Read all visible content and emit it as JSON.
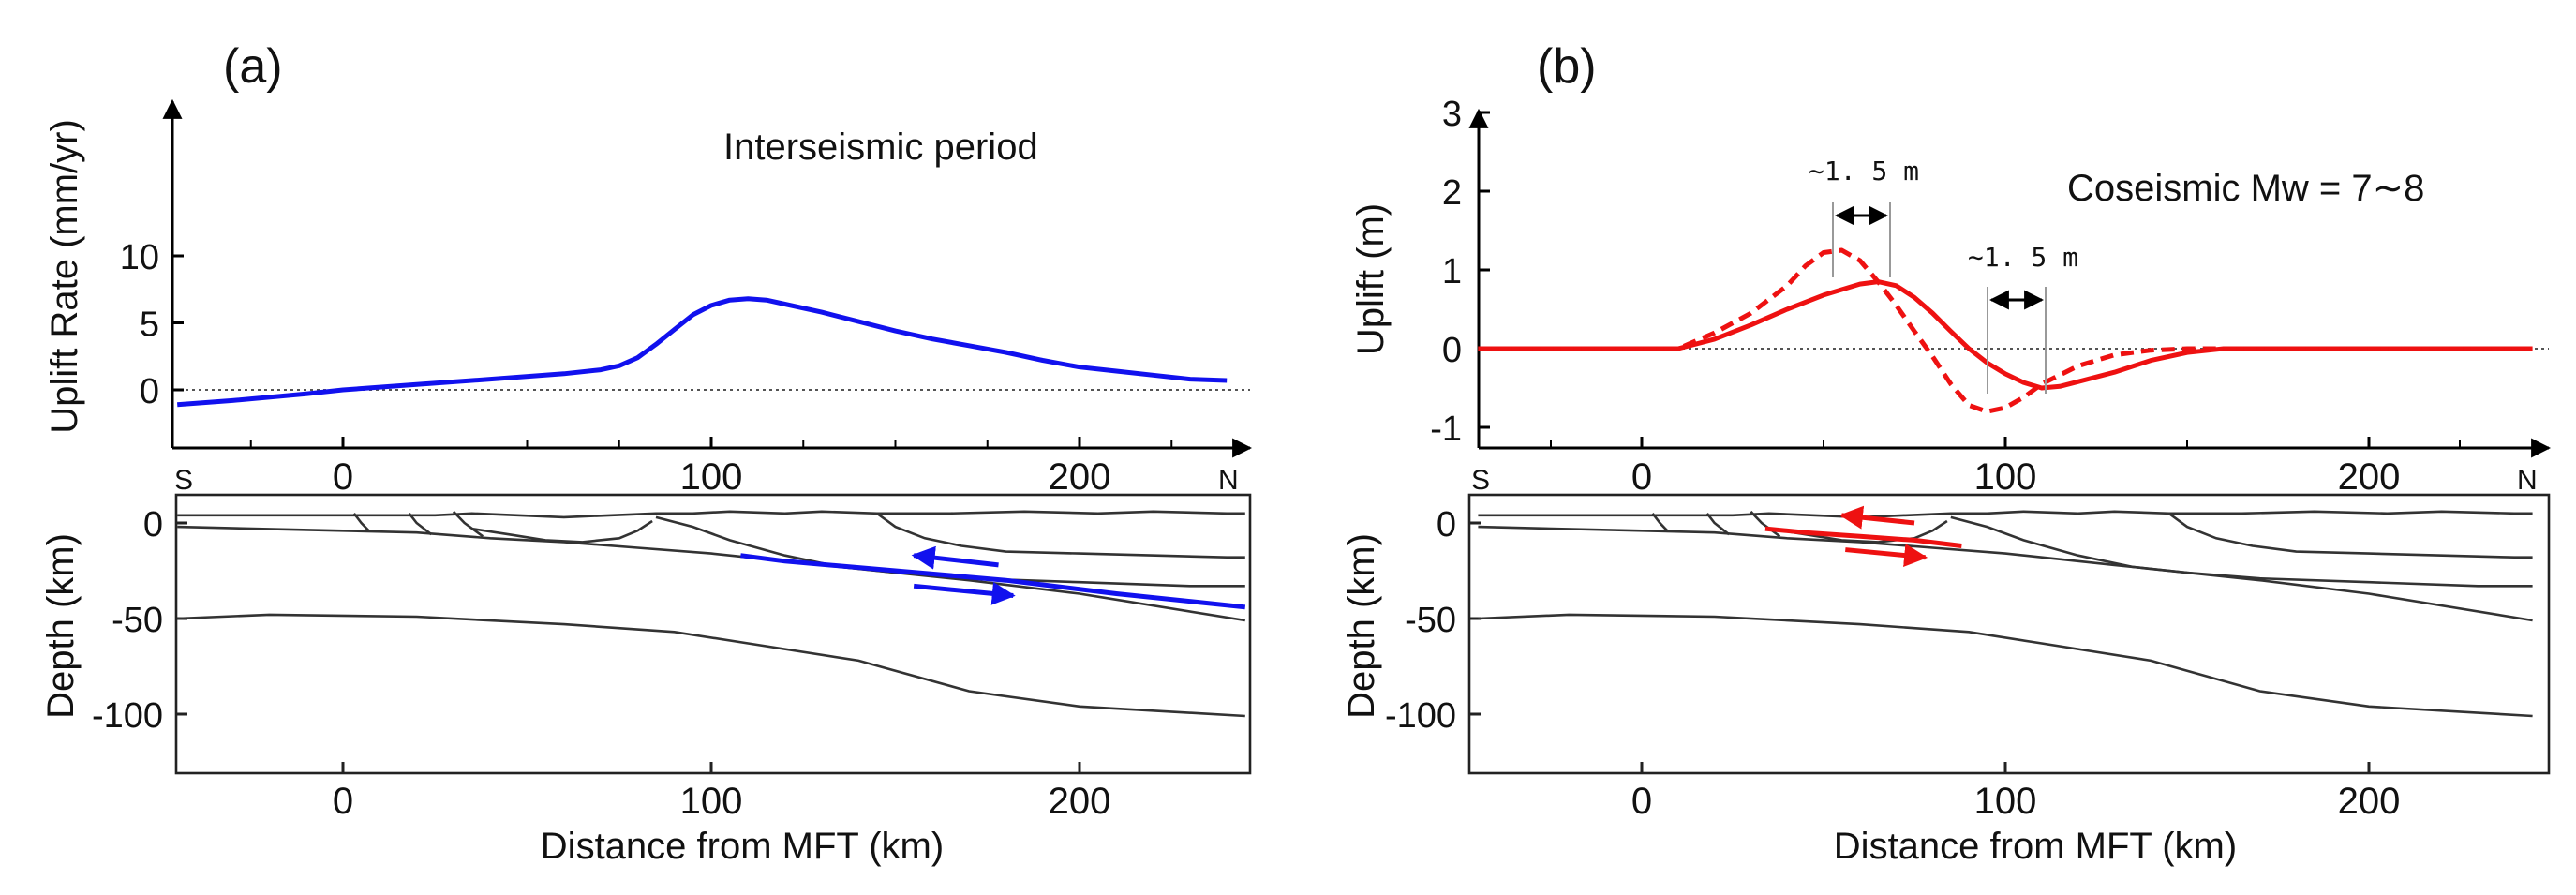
{
  "panel_a": {
    "label": "(a)",
    "annotation": "Interseismic period",
    "ylabel": "Uplift Rate (mm/yr)",
    "yticks": [
      "10",
      "5",
      "0"
    ],
    "xticks": [
      "0",
      "100",
      "200"
    ],
    "south": "S",
    "north": "N",
    "depth_ylabel": "Depth (km)",
    "depth_ticks": [
      "0",
      "-50",
      "-100"
    ],
    "depth_xticks": [
      "0",
      "100",
      "200"
    ],
    "xlabel": "Distance from MFT (km)"
  },
  "panel_b": {
    "label": "(b)",
    "annotation": "Coseismic Mw = 7∼8",
    "ylabel": "Uplift (m)",
    "yticks": [
      "3",
      "2",
      "1",
      "0",
      "-1"
    ],
    "xticks": [
      "0",
      "100",
      "200"
    ],
    "south": "S",
    "north": "N",
    "shift_label_1": "∼1. 5  m",
    "shift_label_2": "∼1. 5  m",
    "depth_ylabel": "Depth (km)",
    "depth_ticks": [
      "0",
      "-50",
      "-100"
    ],
    "depth_xticks": [
      "0",
      "100",
      "200"
    ],
    "xlabel": "Distance from MFT (km)"
  },
  "colors": {
    "interseismic": "#1111ee",
    "coseismic": "#ee1111",
    "structure": "#333333"
  },
  "chart_data": [
    {
      "type": "line",
      "panel": "a",
      "title": "Interseismic period",
      "xlabel": "",
      "ylabel": "Uplift Rate (mm/yr)",
      "xlim": [
        -45,
        245
      ],
      "ylim": [
        -3,
        12
      ],
      "series": [
        {
          "x": [
            -45,
            -30,
            -10,
            0,
            20,
            40,
            60,
            70,
            75,
            80,
            85,
            90,
            95,
            100,
            105,
            110,
            115,
            120,
            130,
            140,
            150,
            160,
            170,
            180,
            190,
            200,
            210,
            220,
            230,
            240
          ],
          "values": [
            -1.1,
            -0.8,
            -0.3,
            0.0,
            0.4,
            0.8,
            1.2,
            1.5,
            1.8,
            2.4,
            3.4,
            4.5,
            5.6,
            6.3,
            6.7,
            6.8,
            6.7,
            6.4,
            5.8,
            5.1,
            4.4,
            3.8,
            3.3,
            2.8,
            2.2,
            1.7,
            1.4,
            1.1,
            0.8,
            0.7
          ]
        }
      ]
    },
    {
      "type": "line",
      "panel": "b",
      "title": "Coseismic Mw = 7∼8",
      "xlabel": "",
      "ylabel": "Uplift (m)",
      "xlim": [
        -45,
        245
      ],
      "ylim": [
        -1.2,
        3.2
      ],
      "series": [
        {
          "x": [
            -45,
            0,
            10,
            20,
            30,
            40,
            50,
            60,
            65,
            70,
            75,
            80,
            85,
            90,
            95,
            100,
            105,
            110,
            115,
            120,
            130,
            140,
            150,
            160,
            175,
            245
          ],
          "values": [
            0,
            0,
            0,
            0.12,
            0.3,
            0.5,
            0.68,
            0.82,
            0.85,
            0.8,
            0.65,
            0.45,
            0.22,
            0.0,
            -0.18,
            -0.32,
            -0.43,
            -0.5,
            -0.48,
            -0.42,
            -0.3,
            -0.15,
            -0.05,
            0,
            0,
            0
          ]
        },
        {
          "style": "dashed",
          "x": [
            -45,
            0,
            10,
            20,
            30,
            40,
            45,
            50,
            55,
            60,
            65,
            70,
            75,
            80,
            85,
            90,
            95,
            100,
            105,
            110,
            120,
            130,
            140,
            150,
            175,
            245
          ],
          "values": [
            0,
            0,
            0,
            0.2,
            0.45,
            0.8,
            1.05,
            1.22,
            1.25,
            1.12,
            0.85,
            0.55,
            0.22,
            -0.1,
            -0.45,
            -0.72,
            -0.8,
            -0.75,
            -0.62,
            -0.45,
            -0.22,
            -0.08,
            -0.02,
            0,
            0,
            0
          ]
        }
      ]
    },
    {
      "type": "line",
      "panel": "a-section",
      "xlabel": "Distance from MFT (km)",
      "ylabel": "Depth (km)",
      "xlim": [
        -45,
        245
      ],
      "ylim": [
        -125,
        10
      ],
      "series": [
        {
          "x": [
            -45,
            25,
            35,
            60,
            85,
            95,
            105,
            120,
            130,
            145,
            165,
            185,
            205,
            220,
            240,
            245
          ],
          "values": [
            4,
            4,
            5,
            3,
            5,
            5,
            6,
            5,
            6,
            5,
            5,
            6,
            5,
            6,
            5,
            5
          ]
        },
        {
          "x": [
            -45,
            20,
            40,
            60,
            80,
            100,
            130,
            170,
            200,
            245
          ],
          "values": [
            -2,
            -5,
            -8,
            -10,
            -13,
            -16,
            -22,
            -30,
            -37,
            -51
          ]
        },
        {
          "x": [
            -45,
            -20,
            20,
            60,
            90,
            110,
            140,
            170,
            200,
            245
          ],
          "values": [
            -50,
            -48,
            -49,
            -53,
            -57,
            -63,
            -72,
            -88,
            -96,
            -101
          ]
        },
        {
          "x": [
            85,
            95,
            105,
            120,
            135,
            150,
            170,
            200,
            230,
            245
          ],
          "values": [
            3,
            -2,
            -9,
            -17,
            -23,
            -26,
            -29,
            -31,
            -33,
            -33
          ]
        },
        {
          "x": [
            145,
            150,
            158,
            168,
            180,
            200,
            240,
            245
          ],
          "values": [
            5,
            -2,
            -8,
            -12,
            -15,
            -16,
            -18,
            -18
          ]
        },
        {
          "x": [
            3,
            5,
            7
          ],
          "values": [
            5,
            0,
            -4
          ]
        },
        {
          "x": [
            18,
            20,
            24
          ],
          "values": [
            5,
            0,
            -6
          ]
        },
        {
          "x": [
            30,
            33,
            38
          ],
          "values": [
            6,
            0,
            -7
          ]
        },
        {
          "x": [
            35,
            45,
            55,
            65,
            75,
            80,
            84
          ],
          "values": [
            -3,
            -6,
            -9,
            -10,
            -8,
            -4,
            1
          ]
        }
      ]
    },
    {
      "type": "line",
      "panel": "b-section",
      "xlabel": "Distance from MFT (km)",
      "ylabel": "Depth (km)",
      "xlim": [
        -45,
        245
      ],
      "ylim": [
        -125,
        10
      ],
      "series": [
        {
          "x": [
            -45,
            25,
            35,
            60,
            85,
            95,
            105,
            120,
            130,
            145,
            165,
            185,
            205,
            220,
            240,
            245
          ],
          "values": [
            4,
            4,
            5,
            3,
            5,
            5,
            6,
            5,
            6,
            5,
            5,
            6,
            5,
            6,
            5,
            5
          ]
        },
        {
          "x": [
            -45,
            20,
            40,
            60,
            80,
            100,
            130,
            170,
            200,
            245
          ],
          "values": [
            -2,
            -5,
            -8,
            -10,
            -13,
            -16,
            -22,
            -30,
            -37,
            -51
          ]
        },
        {
          "x": [
            -45,
            -20,
            20,
            60,
            90,
            110,
            140,
            170,
            200,
            245
          ],
          "values": [
            -50,
            -48,
            -49,
            -53,
            -57,
            -63,
            -72,
            -88,
            -96,
            -101
          ]
        },
        {
          "x": [
            85,
            95,
            105,
            120,
            135,
            150,
            170,
            200,
            230,
            245
          ],
          "values": [
            3,
            -2,
            -9,
            -17,
            -23,
            -26,
            -29,
            -31,
            -33,
            -33
          ]
        },
        {
          "x": [
            145,
            150,
            158,
            168,
            180,
            200,
            240,
            245
          ],
          "values": [
            5,
            -2,
            -8,
            -12,
            -15,
            -16,
            -18,
            -18
          ]
        },
        {
          "x": [
            3,
            5,
            7
          ],
          "values": [
            5,
            0,
            -4
          ]
        },
        {
          "x": [
            18,
            20,
            24
          ],
          "values": [
            5,
            0,
            -6
          ]
        },
        {
          "x": [
            30,
            33,
            38
          ],
          "values": [
            6,
            0,
            -7
          ]
        },
        {
          "x": [
            35,
            45,
            55,
            65,
            75,
            80,
            84
          ],
          "values": [
            -3,
            -6,
            -9,
            -10,
            -8,
            -4,
            1
          ]
        }
      ]
    }
  ]
}
